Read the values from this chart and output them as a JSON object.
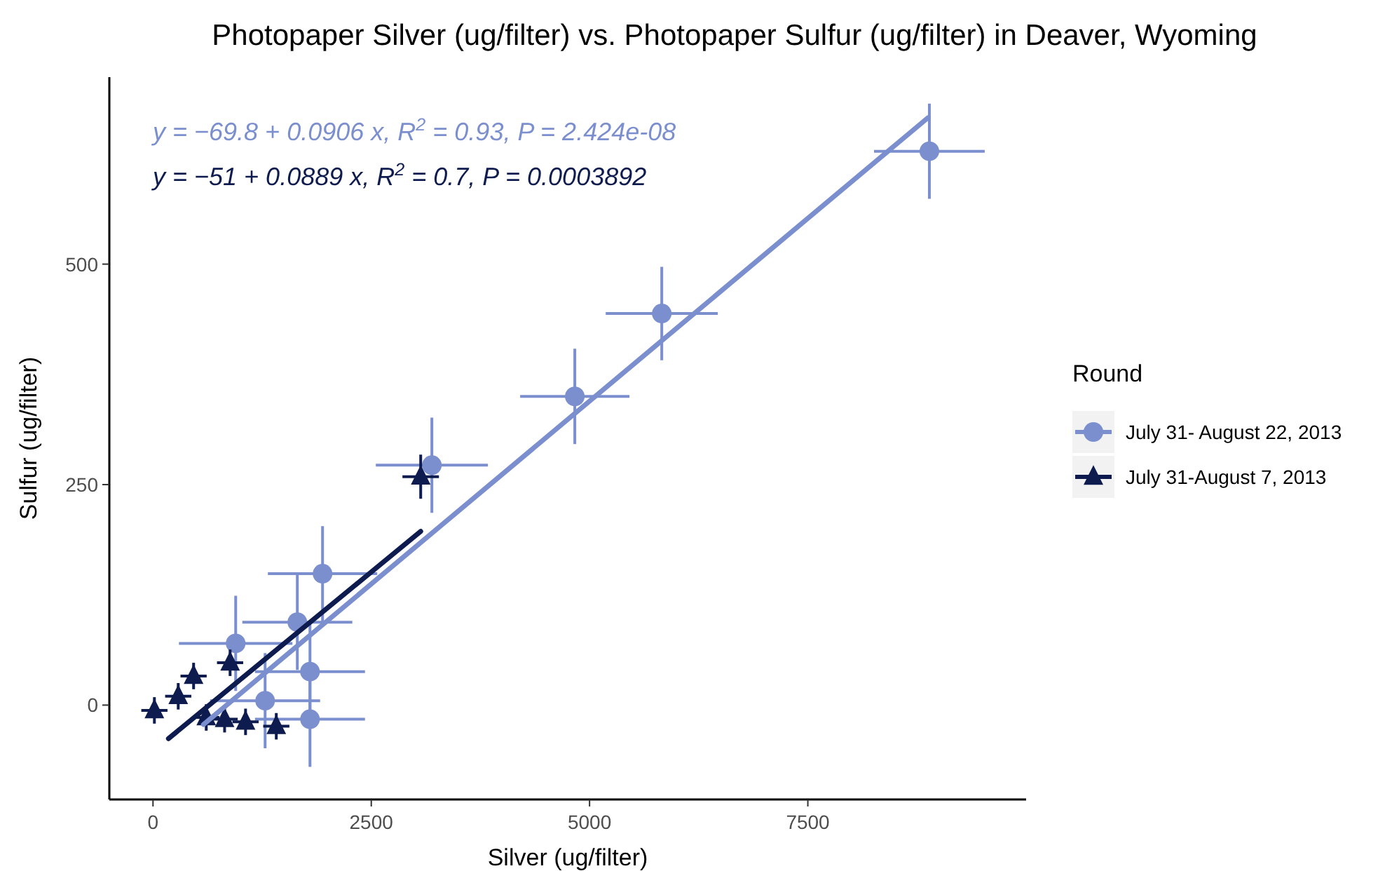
{
  "chart_data": {
    "type": "scatter",
    "title": "Photopaper Silver (ug/filter) vs. Photopaper Sulfur (ug/filter) in Deaver, Wyoming",
    "xlabel": "Silver (ug/filter)",
    "ylabel": "Sulfur (ug/filter)",
    "legend_title": "Round",
    "legend": "right",
    "grid": false,
    "xlim": [
      -500,
      10000
    ],
    "xticks": [
      0,
      2500,
      5000,
      7500
    ],
    "ylim": [
      -107,
      712
    ],
    "yticks": [
      0,
      250,
      500
    ],
    "annotations": [
      "y = −69.8 + 0.0906 x, R$^{2}$ = 0.93, P = 2.424e-08",
      "y = −51 + 0.0889 x, R$^{2}$ = 0.7, P = 0.0003892"
    ],
    "series": [
      {
        "name": "July 31- August 22, 2013",
        "color": "#7b8fcf",
        "marker": "circle",
        "x": [
          8892,
          5827,
          4831,
          3194,
          1942,
          1653,
          947,
          1798,
          1284,
          1798
        ],
        "values": [
          628,
          444,
          350,
          272,
          149,
          94,
          70,
          38,
          5,
          -16
        ],
        "errors": [
          54,
          53,
          54,
          54,
          54,
          54,
          54,
          54,
          54,
          54
        ],
        "xerrors": [
          634,
          642,
          626,
          642,
          626,
          630,
          650,
          630,
          630,
          630
        ]
      },
      {
        "name": "July 31-August 7, 2013",
        "color": "#0d1b4f",
        "marker": "triangle",
        "x": [
          3066,
          465,
          883,
          289,
          16,
          820,
          1060,
          1412,
          610
        ],
        "values": [
          259,
          33,
          48,
          10,
          -6,
          -16,
          -19,
          -24,
          -14
        ],
        "errors": [
          25,
          15,
          15,
          15,
          15,
          15,
          15,
          15,
          15
        ],
        "xerrors": [
          209,
          150,
          150,
          150,
          150,
          150,
          150,
          150,
          150
        ]
      },
      {
        "type": "line",
        "color": "#7b8fcf",
        "x": [
          578,
          8876
        ],
        "values": [
          -22,
          666
        ]
      },
      {
        "type": "line",
        "color": "#0d1b4f",
        "x": [
          177,
          3066
        ],
        "values": [
          -38,
          197
        ]
      }
    ]
  }
}
